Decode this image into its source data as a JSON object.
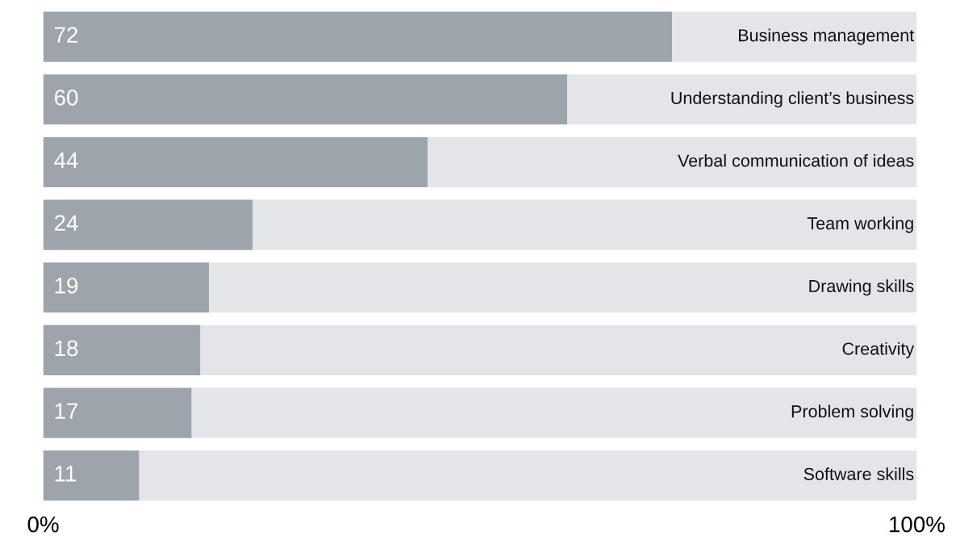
{
  "chart_data": {
    "type": "bar",
    "orientation": "horizontal",
    "stacked": true,
    "categories": [
      "Business management",
      "Understanding client’s business",
      "Verbal communication of ideas",
      "Team working",
      "Drawing skills",
      "Creativity",
      "Problem solving",
      "Software skills"
    ],
    "series": [
      {
        "color": "#9ea4ab",
        "values": [
          72,
          60,
          44,
          24,
          19,
          18,
          17,
          11
        ],
        "value_labels": [
          "72",
          "60",
          "44",
          "24",
          "19",
          "18",
          "17",
          "11"
        ]
      },
      {
        "color": "#e4e5e8",
        "values": [
          28,
          40,
          56,
          76,
          81,
          82,
          83,
          89
        ]
      }
    ],
    "xlim": [
      0,
      100
    ],
    "xticks": [
      {
        "value": 0,
        "label": "0%"
      },
      {
        "value": 100,
        "label": "100%"
      }
    ],
    "grid": false,
    "legend": false
  }
}
